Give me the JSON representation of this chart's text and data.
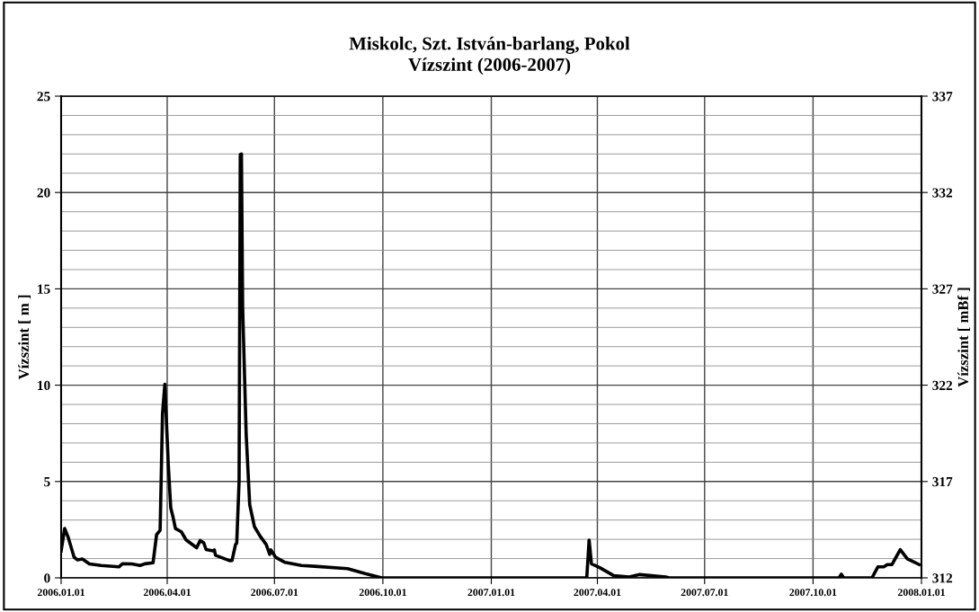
{
  "chart_data": {
    "type": "line",
    "title": "Miskolc, Szt. István-barlang, Pokol\nVízszint (2006-2007)",
    "ylabel": "Vízszint [ m ]",
    "y2label": "Vízszint [ mBf ]",
    "x": [
      "2006-01-01",
      "2006-01-04",
      "2006-01-07",
      "2006-01-12",
      "2006-01-15",
      "2006-01-19",
      "2006-01-25",
      "2006-02-04",
      "2006-02-19",
      "2006-02-22",
      "2006-03-02",
      "2006-03-09",
      "2006-03-13",
      "2006-03-20",
      "2006-03-23",
      "2006-03-26",
      "2006-03-28",
      "2006-03-30",
      "2006-03-31",
      "2006-04-02",
      "2006-04-04",
      "2006-04-06",
      "2006-04-08",
      "2006-04-13",
      "2006-04-17",
      "2006-04-26",
      "2006-04-29",
      "2006-05-02",
      "2006-05-04",
      "2006-05-10",
      "2006-05-11",
      "2006-05-12",
      "2006-05-24",
      "2006-05-26",
      "2006-05-29",
      "2006-05-30",
      "2006-06-01",
      "2006-06-02",
      "2006-06-03",
      "2006-06-04",
      "2006-06-07",
      "2006-06-10",
      "2006-06-14",
      "2006-06-19",
      "2006-06-24",
      "2006-06-27",
      "2006-06-28",
      "2006-07-02",
      "2006-07-10",
      "2006-07-24",
      "2006-08-04",
      "2006-09-01",
      "2006-09-16",
      "2006-09-30",
      "2007-03-23",
      "2007-03-25",
      "2007-03-27",
      "2007-04-03",
      "2007-04-15",
      "2007-04-28",
      "2007-05-07",
      "2007-05-29",
      "2007-06-01",
      "2007-10-23",
      "2007-10-25",
      "2007-10-27",
      "2007-11-20",
      "2007-11-25",
      "2007-11-30",
      "2007-12-03",
      "2007-12-07",
      "2007-12-14",
      "2007-12-20",
      "2007-12-30"
    ],
    "series": [
      {
        "color": "#000000",
        "values": [
          1.4,
          2.56,
          2.1,
          1.07,
          0.93,
          0.98,
          0.72,
          0.64,
          0.57,
          0.73,
          0.72,
          0.64,
          0.73,
          0.78,
          2.24,
          2.47,
          8.5,
          10.05,
          8.6,
          5.8,
          3.64,
          3.14,
          2.56,
          2.39,
          1.97,
          1.56,
          1.94,
          1.82,
          1.47,
          1.4,
          1.45,
          1.17,
          0.89,
          0.9,
          1.73,
          1.8,
          5,
          21.97,
          22,
          14.1,
          7.46,
          3.8,
          2.66,
          2.15,
          1.73,
          1.22,
          1.45,
          1.07,
          0.8,
          0.64,
          0.6,
          0.48,
          0.22,
          0,
          0,
          1.96,
          0.73,
          0.53,
          0.11,
          0.05,
          0.17,
          0.05,
          0,
          0,
          0.19,
          0,
          0,
          0.57,
          0.57,
          0.69,
          0.69,
          1.46,
          0.99,
          0.69
        ]
      }
    ],
    "xlim": [
      "2006-01-01",
      "2008-01-01"
    ],
    "xticks": [
      {
        "value": "2006-01-01",
        "label": "2006.01.01"
      },
      {
        "value": "2006-04-01",
        "label": "2006.04.01"
      },
      {
        "value": "2006-07-01",
        "label": "2006.07.01"
      },
      {
        "value": "2006-10-01",
        "label": "2006.10.01"
      },
      {
        "value": "2007-01-01",
        "label": "2007.01.01"
      },
      {
        "value": "2007-04-01",
        "label": "2007.04.01"
      },
      {
        "value": "2007-07-01",
        "label": "2007.07.01"
      },
      {
        "value": "2007-10-01",
        "label": "2007.10.01"
      },
      {
        "value": "2008-01-01",
        "label": "2008.01.01"
      }
    ],
    "ylim": [
      0,
      25
    ],
    "yticks": [
      0,
      5,
      10,
      15,
      20,
      25
    ],
    "y2lim": [
      312,
      337
    ],
    "y2ticks": [
      312,
      317,
      322,
      327,
      332,
      337
    ],
    "grid": true,
    "legend": false,
    "marker": "none",
    "line_style": "solid"
  }
}
